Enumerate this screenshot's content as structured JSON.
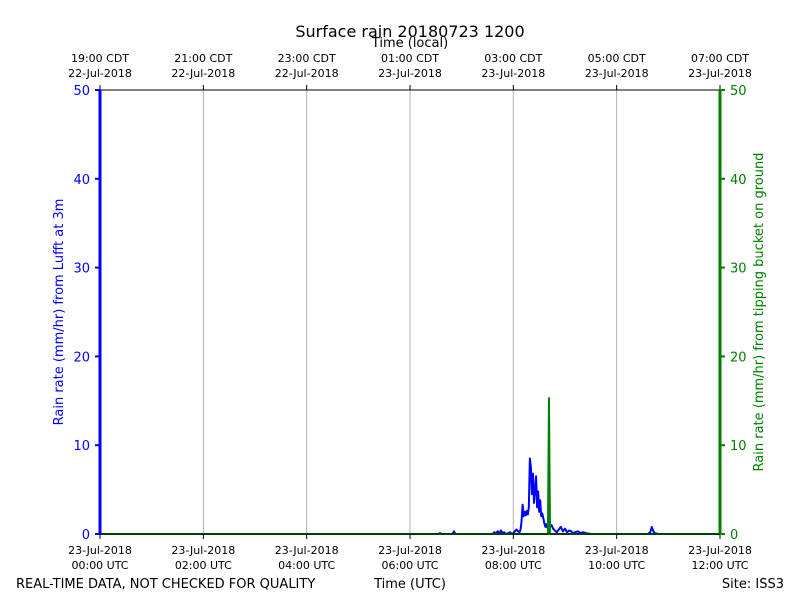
{
  "chart_data": {
    "type": "line",
    "title": "Surface rain 20180723 1200",
    "top_axis_label": "Time (local)",
    "xlabel": "Time (UTC)",
    "ylabel_left": "Rain rate (mm/hr) from Lufft at 3m",
    "ylabel_right": "Rain rate (mm/hr) from tipping bucket on ground",
    "footer_left": "REAL-TIME DATA, NOT CHECKED FOR QUALITY",
    "footer_right": "Site: ISS3",
    "xlim_hours_utc": [
      0,
      12
    ],
    "ylim_left": [
      0,
      50
    ],
    "ylim_right": [
      0,
      50
    ],
    "grid_x": true,
    "grid_y": false,
    "colors": {
      "left": "#0000ff",
      "right": "#008000",
      "grid": "#b0b0b0"
    },
    "x_ticks_bottom": [
      {
        "h": 0,
        "time": "00:00 UTC",
        "date": "23-Jul-2018"
      },
      {
        "h": 2,
        "time": "02:00 UTC",
        "date": "23-Jul-2018"
      },
      {
        "h": 4,
        "time": "04:00 UTC",
        "date": "23-Jul-2018"
      },
      {
        "h": 6,
        "time": "06:00 UTC",
        "date": "23-Jul-2018"
      },
      {
        "h": 8,
        "time": "08:00 UTC",
        "date": "23-Jul-2018"
      },
      {
        "h": 10,
        "time": "10:00 UTC",
        "date": "23-Jul-2018"
      },
      {
        "h": 12,
        "time": "12:00 UTC",
        "date": "23-Jul-2018"
      }
    ],
    "x_ticks_top": [
      {
        "h": 0,
        "time": "19:00 CDT",
        "date": "22-Jul-2018"
      },
      {
        "h": 2,
        "time": "21:00 CDT",
        "date": "22-Jul-2018"
      },
      {
        "h": 4,
        "time": "23:00 CDT",
        "date": "22-Jul-2018"
      },
      {
        "h": 6,
        "time": "01:00 CDT",
        "date": "23-Jul-2018"
      },
      {
        "h": 8,
        "time": "03:00 CDT",
        "date": "23-Jul-2018"
      },
      {
        "h": 10,
        "time": "05:00 CDT",
        "date": "23-Jul-2018"
      },
      {
        "h": 12,
        "time": "07:00 CDT",
        "date": "23-Jul-2018"
      }
    ],
    "y_ticks_left": [
      0,
      10,
      20,
      30,
      40,
      50
    ],
    "y_ticks_right": [
      0,
      10,
      20,
      30,
      40,
      50
    ],
    "series": [
      {
        "axis": "left",
        "color": "#0000ff",
        "x": [
          0,
          6.55,
          6.58,
          6.61,
          6.82,
          6.85,
          6.88,
          7.6,
          7.63,
          7.66,
          7.7,
          7.73,
          7.76,
          7.79,
          7.82,
          7.86,
          7.9,
          7.94,
          7.97,
          8.0,
          8.03,
          8.06,
          8.09,
          8.12,
          8.14,
          8.16,
          8.18,
          8.2,
          8.22,
          8.24,
          8.26,
          8.28,
          8.3,
          8.32,
          8.34,
          8.36,
          8.38,
          8.4,
          8.42,
          8.44,
          8.46,
          8.48,
          8.5,
          8.52,
          8.54,
          8.56,
          8.58,
          8.6,
          8.62,
          8.64,
          8.66,
          8.68,
          8.71,
          8.74,
          8.77,
          8.8,
          8.84,
          8.88,
          8.92,
          8.96,
          9.0,
          9.04,
          9.08,
          9.12,
          9.16,
          9.2,
          9.25,
          9.3,
          9.35,
          9.4,
          9.5,
          10.2,
          10.6,
          10.65,
          10.68,
          10.71,
          10.74,
          10.8,
          12
        ],
        "y": [
          0,
          0,
          0.1,
          0,
          0,
          0.3,
          0,
          0,
          0.2,
          0.1,
          0.3,
          0.1,
          0.4,
          0.1,
          0.2,
          0,
          0.1,
          0.2,
          0,
          0.1,
          0.3,
          0.5,
          0.3,
          0.2,
          0.5,
          1.5,
          3.3,
          2.0,
          2.5,
          2.1,
          2.6,
          2.2,
          3.0,
          8.5,
          7.5,
          4.5,
          6.8,
          3.5,
          5.0,
          6.5,
          3.0,
          4.8,
          2.5,
          3.8,
          2.0,
          2.3,
          1.8,
          1.2,
          0.8,
          1.1,
          0.7,
          1.0,
          0.8,
          1.0,
          0.6,
          0.4,
          0.2,
          0.5,
          0.8,
          0.3,
          0.6,
          0.2,
          0.4,
          0.3,
          0.1,
          0.2,
          0.3,
          0.1,
          0.2,
          0.1,
          0,
          0,
          0,
          0.2,
          0.8,
          0.3,
          0.1,
          0,
          0
        ]
      },
      {
        "axis": "right",
        "color": "#008000",
        "x": [
          0,
          8.67,
          8.69,
          8.71,
          12
        ],
        "y": [
          0,
          0,
          15.3,
          0,
          0
        ]
      }
    ]
  }
}
